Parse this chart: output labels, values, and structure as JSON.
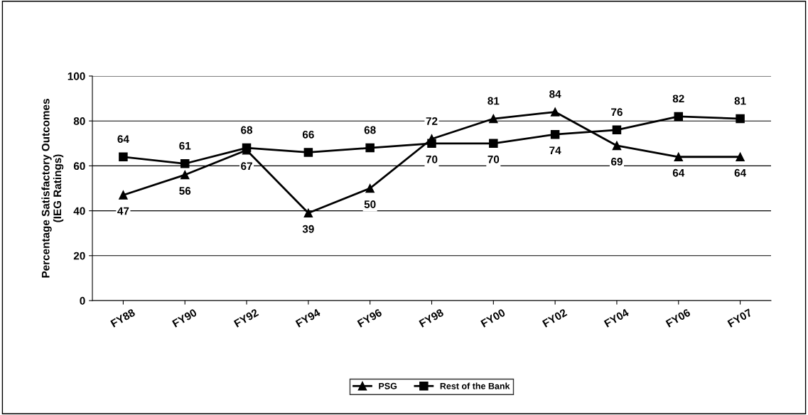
{
  "chart_data": {
    "type": "line",
    "ylabel": "Percentage Satisfactory Outcomes\n(IEG Ratings)",
    "categories": [
      "FY88",
      "FY90",
      "FY92",
      "FY94",
      "FY96",
      "FY98",
      "FY00",
      "FY02",
      "FY04",
      "FY06",
      "FY07"
    ],
    "series": [
      {
        "name": "PSG",
        "color": "#000000",
        "marker": "triangle",
        "values": [
          47,
          56,
          67,
          39,
          50,
          72,
          81,
          84,
          69,
          64,
          64
        ]
      },
      {
        "name": "Rest of the Bank",
        "color": "#000000",
        "marker": "square",
        "values": [
          64,
          61,
          68,
          66,
          68,
          70,
          70,
          74,
          76,
          82,
          81
        ]
      }
    ],
    "ylim": [
      0,
      100
    ],
    "yticks": [
      0,
      20,
      40,
      60,
      80,
      100
    ],
    "grid": "y",
    "legend": "bottom",
    "data_labels": true,
    "line_style": "solid"
  }
}
